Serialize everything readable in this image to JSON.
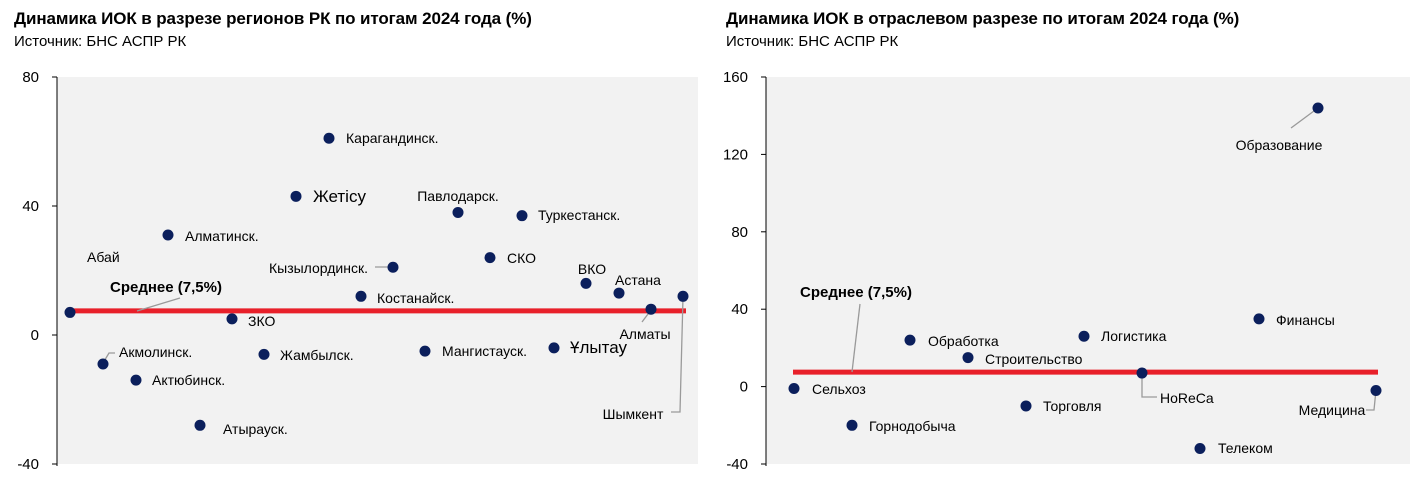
{
  "colors": {
    "plot_bg": "#f2f2f2",
    "point": "#0b1f5c",
    "average_line": "#e8202a",
    "leader": "#9a9a9a"
  },
  "charts": [
    {
      "title": "Динамика ИОК в разрезе регионов РК по итогам 2024 года (%)",
      "source": "Источник: БНС АСПР РК"
    },
    {
      "title": "Динамика ИОК в отраслевом разрезе по итогам 2024 года (%)",
      "source": "Источник: БНС АСПР РК"
    }
  ],
  "chart_data": [
    {
      "type": "scatter",
      "title": "Динамика ИОК в разрезе регионов РК по итогам 2024 года (%)",
      "ylim": [
        -40,
        80
      ],
      "yticks": [
        -40,
        0,
        40,
        80
      ],
      "grid": false,
      "average": {
        "label": "Среднее (7,5%)",
        "value": 7.5
      },
      "points": [
        {
          "label": "Абай",
          "value": 7
        },
        {
          "label": "Акмолинск.",
          "value": -9
        },
        {
          "label": "Актюбинск.",
          "value": -14
        },
        {
          "label": "Алматинск.",
          "value": 31
        },
        {
          "label": "Атырауск.",
          "value": -28
        },
        {
          "label": "ЗКО",
          "value": 5
        },
        {
          "label": "Жамбылск.",
          "value": -6
        },
        {
          "label": "Жетісу",
          "value": 43
        },
        {
          "label": "Карагандинск.",
          "value": 61
        },
        {
          "label": "Костанайск.",
          "value": 12
        },
        {
          "label": "Кызылординск.",
          "value": 21
        },
        {
          "label": "Мангистауск.",
          "value": -5
        },
        {
          "label": "Павлодарск.",
          "value": 38
        },
        {
          "label": "СКО",
          "value": 24
        },
        {
          "label": "Туркестанск.",
          "value": 37
        },
        {
          "label": "Ұлытау",
          "value": -4
        },
        {
          "label": "ВКО",
          "value": 16
        },
        {
          "label": "Астана",
          "value": 13
        },
        {
          "label": "Алматы",
          "value": 8
        },
        {
          "label": "Шымкент",
          "value": 12
        }
      ]
    },
    {
      "type": "scatter",
      "title": "Динамика ИОК в отраслевом разрезе по итогам 2024 года (%)",
      "ylim": [
        -40,
        160
      ],
      "yticks": [
        -40,
        0,
        40,
        80,
        120,
        160
      ],
      "grid": false,
      "average": {
        "label": "Среднее (7,5%)",
        "value": 7.5
      },
      "points": [
        {
          "label": "Сельхоз",
          "value": -1
        },
        {
          "label": "Горнодобыча",
          "value": -20
        },
        {
          "label": "Обработка",
          "value": 24
        },
        {
          "label": "Строительство",
          "value": 15
        },
        {
          "label": "Торговля",
          "value": -10
        },
        {
          "label": "Логистика",
          "value": 26
        },
        {
          "label": "HoReCa",
          "value": 7
        },
        {
          "label": "Телеком",
          "value": -32
        },
        {
          "label": "Финансы",
          "value": 35
        },
        {
          "label": "Образование",
          "value": 144
        },
        {
          "label": "Медицина",
          "value": -2
        }
      ]
    }
  ]
}
